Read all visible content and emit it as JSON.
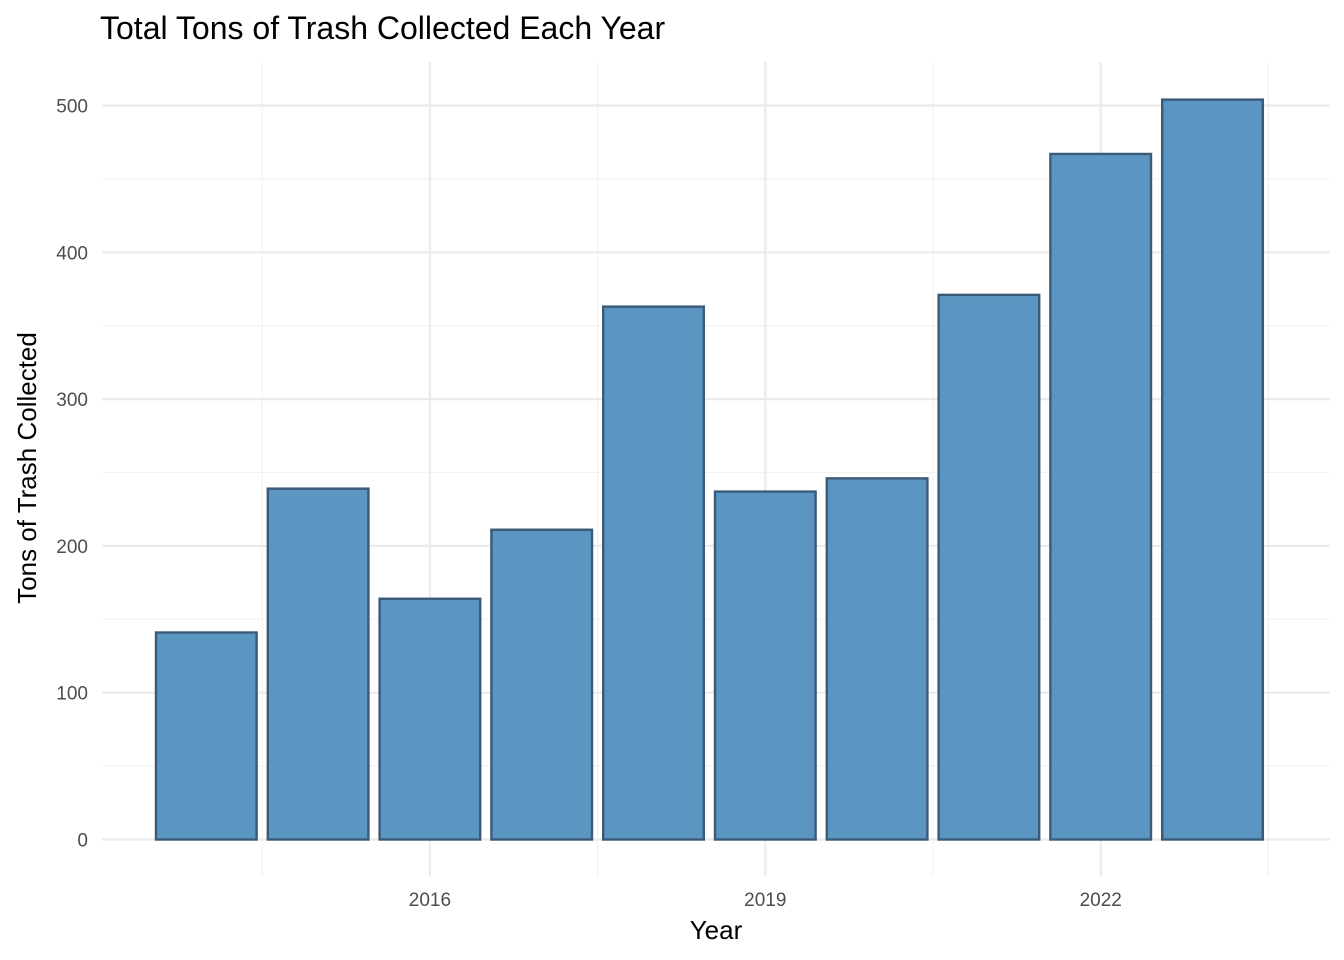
{
  "chart_data": {
    "type": "bar",
    "title": "Total Tons of Trash Collected Each Year",
    "xlabel": "Year",
    "ylabel": "Tons of Trash Collected",
    "x": [
      2014,
      2015,
      2016,
      2017,
      2018,
      2019,
      2020,
      2021,
      2022,
      2023
    ],
    "values": [
      141,
      239,
      164,
      211,
      363,
      237,
      246,
      371,
      467,
      504
    ],
    "x_ticks": [
      2016,
      2019,
      2022
    ],
    "x_tick_labels": [
      "2016",
      "2019",
      "2022"
    ],
    "ylim": [
      0,
      525
    ],
    "y_ticks": [
      0,
      100,
      200,
      300,
      400,
      500
    ],
    "y_tick_labels": [
      "0",
      "100",
      "200",
      "300",
      "400",
      "500"
    ],
    "grid": true,
    "legend": "none",
    "colors": {
      "bar_fill": "#5b95c2",
      "bar_outline": "#3b5a78",
      "grid": "#ebebeb",
      "background": "#ffffff"
    }
  }
}
